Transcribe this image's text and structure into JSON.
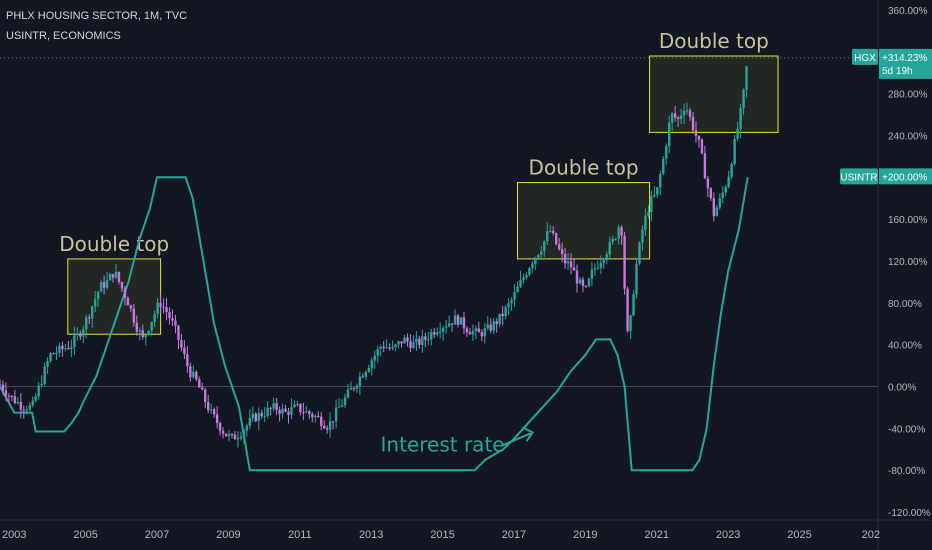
{
  "header": {
    "symbol_line": "PHLX HOUSING SECTOR, 1M, TVC",
    "overlay_line": "USINTR, ECONOMICS"
  },
  "colors": {
    "background": "#131722",
    "candle_up": "#26a69a",
    "candle_down": "#c678dd",
    "line": "#26a69a",
    "annotation_text": "#c8c39a",
    "annotation_box": "#e8e03a",
    "interest_label": "#26a69a",
    "hgx_tag": "#26a69a",
    "usintr_tag": "#26a69a",
    "grid_text": "#b2b5be"
  },
  "chart_data": {
    "type": "line",
    "title": "PHLX HOUSING SECTOR, 1M, TVC",
    "x_ticks": [
      "2003",
      "2005",
      "2007",
      "2009",
      "2011",
      "2013",
      "2015",
      "2017",
      "2019",
      "2021",
      "2023",
      "2025",
      "202"
    ],
    "y_ticks": [
      "360.00%",
      "320.00%",
      "280.00%",
      "240.00%",
      "200.00%",
      "160.00%",
      "120.00%",
      "80.00%",
      "40.00%",
      "0.00%",
      "-40.00%",
      "-80.00%",
      "-120.00%"
    ],
    "ylim": [
      -120,
      360
    ],
    "xlim": [
      2002.6,
      2027.2
    ],
    "price_labels": [
      {
        "symbol": "HGX",
        "value": "+314.23%",
        "extra": "5d 19h"
      },
      {
        "symbol": "USINTR",
        "value": "+200.00%"
      }
    ],
    "annotations": [
      {
        "text": "Double top",
        "x0": 2004.5,
        "x1": 2007.1,
        "y0": 50,
        "y1": 122
      },
      {
        "text": "Double top",
        "x0": 2017.1,
        "x1": 2020.8,
        "y0": 122,
        "y1": 195
      },
      {
        "text": "Double top",
        "x0": 2020.8,
        "x1": 2024.4,
        "y0": 243,
        "y1": 316
      },
      {
        "text": "Interest rate",
        "x": 2015.0,
        "y": -62
      }
    ],
    "series": [
      {
        "name": "HGX",
        "style": "candles",
        "points": [
          [
            2002.6,
            2
          ],
          [
            2002.9,
            -10
          ],
          [
            2003.2,
            -18
          ],
          [
            2003.5,
            -20
          ],
          [
            2003.8,
            10
          ],
          [
            2004.0,
            30
          ],
          [
            2004.3,
            35
          ],
          [
            2004.6,
            40
          ],
          [
            2004.9,
            55
          ],
          [
            2005.1,
            70
          ],
          [
            2005.4,
            95
          ],
          [
            2005.6,
            100
          ],
          [
            2005.8,
            110
          ],
          [
            2006.0,
            95
          ],
          [
            2006.2,
            80
          ],
          [
            2006.4,
            60
          ],
          [
            2006.6,
            45
          ],
          [
            2006.8,
            60
          ],
          [
            2007.0,
            75
          ],
          [
            2007.1,
            80
          ],
          [
            2007.3,
            70
          ],
          [
            2007.5,
            55
          ],
          [
            2007.7,
            35
          ],
          [
            2007.9,
            15
          ],
          [
            2008.1,
            5
          ],
          [
            2008.3,
            -10
          ],
          [
            2008.5,
            -25
          ],
          [
            2008.7,
            -35
          ],
          [
            2008.9,
            -45
          ],
          [
            2009.1,
            -50
          ],
          [
            2009.4,
            -42
          ],
          [
            2009.7,
            -30
          ],
          [
            2010.0,
            -25
          ],
          [
            2010.3,
            -20
          ],
          [
            2010.6,
            -25
          ],
          [
            2010.9,
            -20
          ],
          [
            2011.2,
            -25
          ],
          [
            2011.5,
            -30
          ],
          [
            2011.8,
            -38
          ],
          [
            2012.1,
            -20
          ],
          [
            2012.4,
            -5
          ],
          [
            2012.7,
            10
          ],
          [
            2013.0,
            25
          ],
          [
            2013.3,
            40
          ],
          [
            2013.6,
            35
          ],
          [
            2013.9,
            45
          ],
          [
            2014.2,
            40
          ],
          [
            2014.5,
            45
          ],
          [
            2014.8,
            55
          ],
          [
            2015.1,
            60
          ],
          [
            2015.4,
            65
          ],
          [
            2015.7,
            55
          ],
          [
            2016.0,
            50
          ],
          [
            2016.3,
            55
          ],
          [
            2016.6,
            65
          ],
          [
            2016.9,
            80
          ],
          [
            2017.2,
            100
          ],
          [
            2017.5,
            120
          ],
          [
            2017.8,
            135
          ],
          [
            2018.0,
            150
          ],
          [
            2018.2,
            135
          ],
          [
            2018.4,
            120
          ],
          [
            2018.6,
            115
          ],
          [
            2018.8,
            100
          ],
          [
            2019.0,
            90
          ],
          [
            2019.2,
            110
          ],
          [
            2019.5,
            125
          ],
          [
            2019.8,
            140
          ],
          [
            2020.0,
            160
          ],
          [
            2020.1,
            95
          ],
          [
            2020.2,
            40
          ],
          [
            2020.4,
            110
          ],
          [
            2020.6,
            150
          ],
          [
            2020.8,
            175
          ],
          [
            2021.0,
            185
          ],
          [
            2021.2,
            220
          ],
          [
            2021.4,
            260
          ],
          [
            2021.6,
            255
          ],
          [
            2021.8,
            270
          ],
          [
            2022.0,
            250
          ],
          [
            2022.2,
            230
          ],
          [
            2022.4,
            195
          ],
          [
            2022.6,
            165
          ],
          [
            2022.8,
            180
          ],
          [
            2023.0,
            200
          ],
          [
            2023.2,
            235
          ],
          [
            2023.4,
            270
          ],
          [
            2023.55,
            314
          ]
        ]
      },
      {
        "name": "USINTR",
        "style": "line",
        "points": [
          [
            2002.6,
            0
          ],
          [
            2003.0,
            -25
          ],
          [
            2003.5,
            -25
          ],
          [
            2003.6,
            -43
          ],
          [
            2004.4,
            -43
          ],
          [
            2004.6,
            -35
          ],
          [
            2004.8,
            -25
          ],
          [
            2005.0,
            -10
          ],
          [
            2005.3,
            10
          ],
          [
            2005.6,
            40
          ],
          [
            2005.9,
            70
          ],
          [
            2006.2,
            100
          ],
          [
            2006.5,
            140
          ],
          [
            2006.8,
            170
          ],
          [
            2007.0,
            200
          ],
          [
            2007.8,
            200
          ],
          [
            2008.0,
            180
          ],
          [
            2008.2,
            140
          ],
          [
            2008.4,
            100
          ],
          [
            2008.6,
            60
          ],
          [
            2008.9,
            20
          ],
          [
            2009.3,
            -20
          ],
          [
            2009.6,
            -80
          ],
          [
            2015.9,
            -80
          ],
          [
            2016.2,
            -70
          ],
          [
            2016.7,
            -60
          ],
          [
            2017.0,
            -50
          ],
          [
            2017.4,
            -35
          ],
          [
            2017.8,
            -20
          ],
          [
            2018.2,
            -5
          ],
          [
            2018.6,
            15
          ],
          [
            2019.0,
            30
          ],
          [
            2019.3,
            45
          ],
          [
            2019.7,
            45
          ],
          [
            2019.9,
            30
          ],
          [
            2020.1,
            0
          ],
          [
            2020.3,
            -80
          ],
          [
            2022.0,
            -80
          ],
          [
            2022.2,
            -70
          ],
          [
            2022.4,
            -40
          ],
          [
            2022.6,
            20
          ],
          [
            2022.8,
            70
          ],
          [
            2023.0,
            110
          ],
          [
            2023.3,
            150
          ],
          [
            2023.55,
            200
          ]
        ]
      }
    ]
  }
}
